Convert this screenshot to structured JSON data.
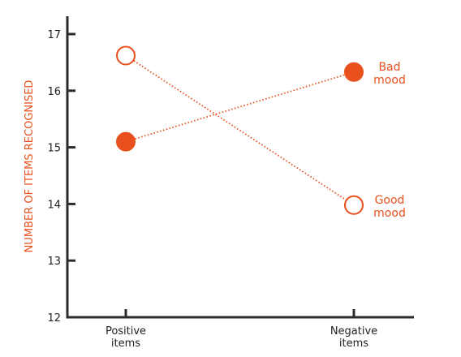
{
  "chart_data": {
    "type": "line",
    "title": "",
    "xlabel": "",
    "ylabel": "NUMBER OF ITEMS RECOGNISED",
    "ylim": [
      12,
      17
    ],
    "yticks": [
      "12",
      "13",
      "14",
      "15",
      "16",
      "17"
    ],
    "categories": [
      [
        "Positive",
        "items"
      ],
      [
        "Negative",
        "items"
      ]
    ],
    "series": [
      {
        "name": [
          "Bad",
          "mood"
        ],
        "values": [
          15.1,
          16.33
        ],
        "marker": "filled",
        "color": "#e8501e"
      },
      {
        "name": [
          "Good",
          "mood"
        ],
        "values": [
          16.62,
          13.98
        ],
        "marker": "hollow",
        "color": "#e8501e"
      }
    ],
    "grid": false,
    "legend": "inline labels at right end of each line"
  }
}
